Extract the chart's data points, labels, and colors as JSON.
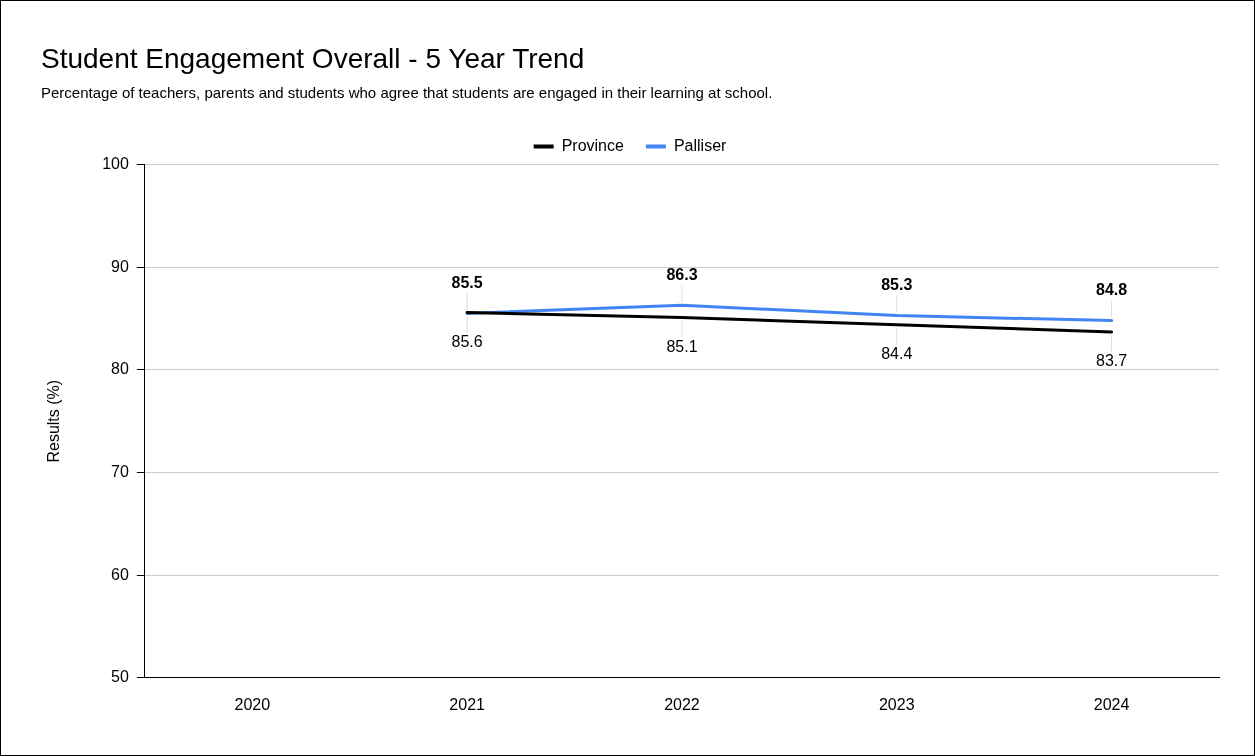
{
  "chart_data": {
    "type": "line",
    "title": "Student Engagement Overall - 5 Year Trend",
    "subtitle": "Percentage of teachers, parents and students who agree that students are engaged in their learning at school.",
    "ylabel": "Results (%)",
    "categories": [
      "2020",
      "2021",
      "2022",
      "2023",
      "2024"
    ],
    "series": [
      {
        "name": "Province",
        "color": "#000000",
        "values": [
          null,
          85.6,
          85.1,
          84.4,
          83.7
        ]
      },
      {
        "name": "Palliser",
        "color": "#4285f4",
        "values": [
          null,
          85.5,
          86.3,
          85.3,
          84.8
        ]
      }
    ],
    "ylim": [
      50,
      100
    ],
    "yticks": [
      50,
      60,
      70,
      80,
      90,
      100
    ],
    "grid": "y",
    "legend": "top",
    "marker": "none",
    "data_labels": true
  }
}
